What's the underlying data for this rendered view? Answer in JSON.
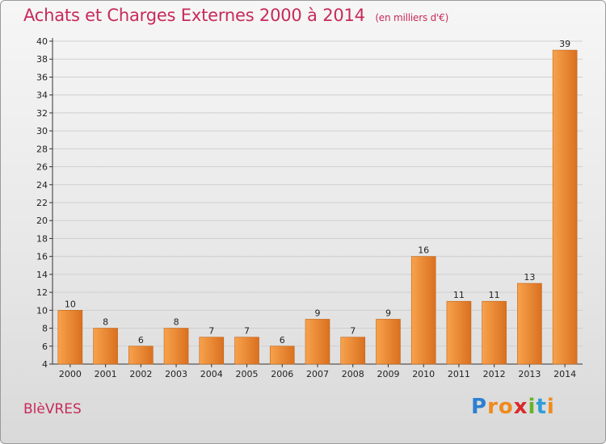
{
  "header": {
    "title": "Achats et Charges Externes 2000 à 2014",
    "subtitle": "(en milliers d'€)"
  },
  "footer": {
    "commune": "BlèVRES",
    "logo_letters": [
      "P",
      "r",
      "o",
      "x",
      "i",
      "t",
      "i"
    ],
    "logo_colors": [
      "#2f7fd1",
      "#f08a1c",
      "#f08a1c",
      "#d92a2a",
      "#6ab22a",
      "#2f9ed6",
      "#f08a1c"
    ]
  },
  "colors": {
    "bar_light": "#f8a24c",
    "bar_dark": "#d97020",
    "bar_edge": "#c56416",
    "title": "#c72a5a",
    "grid": "#cfcfcf",
    "axis": "#333333"
  },
  "chart_data": {
    "type": "bar",
    "title": "Achats et Charges Externes 2000 à 2014",
    "categories": [
      "2000",
      "2001",
      "2002",
      "2003",
      "2004",
      "2005",
      "2006",
      "2007",
      "2008",
      "2009",
      "2010",
      "2011",
      "2012",
      "2013",
      "2014"
    ],
    "values": [
      10,
      8,
      6,
      8,
      7,
      7,
      6,
      9,
      7,
      9,
      16,
      11,
      11,
      13,
      39
    ],
    "ylim": [
      4,
      40
    ],
    "yticks": [
      4,
      6,
      8,
      10,
      12,
      14,
      16,
      18,
      20,
      22,
      24,
      26,
      28,
      30,
      32,
      34,
      36,
      38,
      40
    ],
    "grid": true,
    "legend": "none"
  }
}
